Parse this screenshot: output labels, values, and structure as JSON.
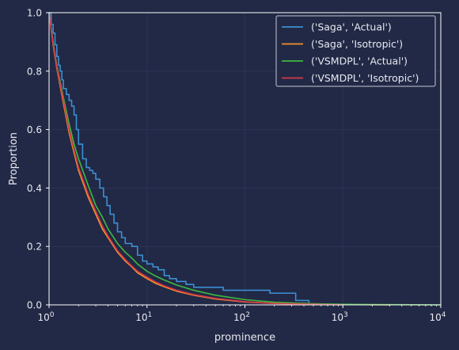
{
  "colors": {
    "background": "#212946",
    "grid": "#2A3459",
    "axis": "#FFFFFF",
    "text": "#E8E8EF"
  },
  "chart_data": {
    "type": "line",
    "title": "",
    "xlabel": "prominence",
    "ylabel": "Proportion",
    "xscale": "log",
    "xlim": [
      1,
      10000
    ],
    "ylim": [
      0,
      1
    ],
    "grid": true,
    "legend_position": "top-right",
    "x_ticks": [
      {
        "value": 1,
        "base": "10",
        "exp": "0"
      },
      {
        "value": 10,
        "base": "10",
        "exp": "1"
      },
      {
        "value": 100,
        "base": "10",
        "exp": "2"
      },
      {
        "value": 1000,
        "base": "10",
        "exp": "3"
      },
      {
        "value": 10000,
        "base": "10",
        "exp": "4"
      }
    ],
    "y_ticks": [
      "0.0",
      "0.2",
      "0.4",
      "0.6",
      "0.8",
      "1.0"
    ],
    "series": [
      {
        "name": "('Saga', 'Actual')",
        "color": "#3D8FD1",
        "step": true,
        "x": [
          1,
          1.05,
          1.1,
          1.15,
          1.2,
          1.25,
          1.3,
          1.35,
          1.4,
          1.5,
          1.6,
          1.7,
          1.8,
          1.9,
          2.0,
          2.2,
          2.4,
          2.6,
          2.8,
          3.0,
          3.3,
          3.6,
          3.9,
          4.2,
          4.6,
          5.0,
          5.5,
          6.0,
          7.0,
          8.0,
          9.0,
          10.0,
          11.5,
          13.0,
          15.0,
          17.0,
          20.0,
          25.0,
          30.0,
          40.0,
          60.0,
          100.0,
          180.0,
          330.0,
          450.0
        ],
        "y": [
          1.0,
          0.96,
          0.93,
          0.89,
          0.85,
          0.82,
          0.8,
          0.77,
          0.74,
          0.72,
          0.7,
          0.68,
          0.65,
          0.6,
          0.55,
          0.5,
          0.47,
          0.46,
          0.45,
          0.43,
          0.4,
          0.37,
          0.34,
          0.31,
          0.28,
          0.25,
          0.23,
          0.21,
          0.2,
          0.17,
          0.15,
          0.14,
          0.13,
          0.12,
          0.1,
          0.09,
          0.08,
          0.07,
          0.06,
          0.06,
          0.05,
          0.05,
          0.04,
          0.015,
          0.0
        ]
      },
      {
        "name": "('Saga', 'Isotropic')",
        "color": "#F5922F",
        "step": false,
        "x": [
          1,
          1.1,
          1.2,
          1.4,
          1.6,
          1.8,
          2.0,
          2.5,
          3.0,
          3.5,
          4.0,
          5.0,
          6.0,
          7.0,
          8.0,
          10.0,
          12.0,
          15.0,
          20.0,
          30.0,
          50.0,
          100.0,
          200.0,
          500.0,
          1000.0,
          3000.0
        ],
        "y": [
          1.0,
          0.89,
          0.81,
          0.69,
          0.59,
          0.52,
          0.46,
          0.37,
          0.31,
          0.26,
          0.23,
          0.18,
          0.15,
          0.13,
          0.11,
          0.09,
          0.075,
          0.062,
          0.047,
          0.033,
          0.02,
          0.01,
          0.005,
          0.002,
          0.001,
          0.0
        ]
      },
      {
        "name": "('VSMDPL', 'Actual')",
        "color": "#3FB93F",
        "step": false,
        "x": [
          1,
          1.1,
          1.2,
          1.4,
          1.6,
          1.8,
          2.0,
          2.5,
          3.0,
          3.5,
          4.0,
          5.0,
          6.0,
          7.0,
          8.0,
          10.0,
          12.0,
          15.0,
          20.0,
          30.0,
          50.0,
          100.0,
          200.0,
          500.0,
          1000.0,
          3000.0,
          10000.0
        ],
        "y": [
          1.0,
          0.9,
          0.82,
          0.71,
          0.62,
          0.55,
          0.5,
          0.41,
          0.34,
          0.3,
          0.26,
          0.21,
          0.18,
          0.16,
          0.14,
          0.115,
          0.1,
          0.085,
          0.068,
          0.05,
          0.033,
          0.018,
          0.009,
          0.004,
          0.002,
          0.001,
          0.0
        ]
      },
      {
        "name": "('VSMDPL', 'Isotropic')",
        "color": "#D3394A",
        "step": false,
        "x": [
          1,
          1.1,
          1.2,
          1.4,
          1.6,
          1.8,
          2.0,
          2.5,
          3.0,
          3.5,
          4.0,
          5.0,
          6.0,
          7.0,
          8.0,
          10.0,
          12.0,
          15.0,
          20.0,
          30.0,
          50.0,
          100.0,
          200.0,
          500.0,
          1000.0
        ],
        "y": [
          1.0,
          0.895,
          0.815,
          0.7,
          0.6,
          0.53,
          0.47,
          0.38,
          0.32,
          0.27,
          0.235,
          0.185,
          0.155,
          0.133,
          0.115,
          0.095,
          0.08,
          0.065,
          0.05,
          0.035,
          0.022,
          0.011,
          0.005,
          0.002,
          0.0
        ]
      }
    ]
  }
}
